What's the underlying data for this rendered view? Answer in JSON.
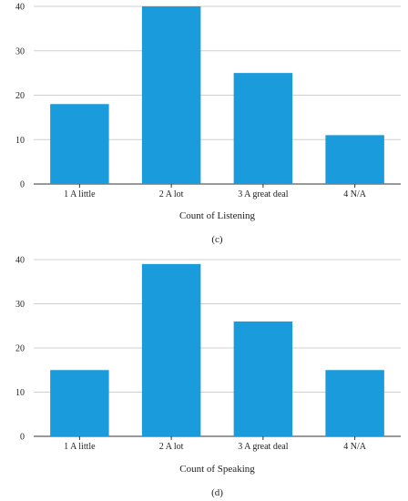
{
  "chart_data": [
    {
      "type": "bar",
      "panel_label": "(c)",
      "xlabel": "Count of Listening",
      "ylabel": "",
      "categories": [
        "1 A little",
        "2 A lot",
        "3 A great deal",
        "4 N/A"
      ],
      "values": [
        18,
        40,
        25,
        11
      ],
      "ylim": [
        0,
        40
      ],
      "yticks": [
        0,
        10,
        20,
        30,
        40
      ],
      "grid": true,
      "bar_color": "#1a9bdb"
    },
    {
      "type": "bar",
      "panel_label": "(d)",
      "xlabel": "Count of Speaking",
      "ylabel": "",
      "categories": [
        "1 A little",
        "2 A lot",
        "3 A great deal",
        "4 N/A"
      ],
      "values": [
        15,
        39,
        26,
        15
      ],
      "ylim": [
        0,
        40
      ],
      "yticks": [
        0,
        10,
        20,
        30,
        40
      ],
      "grid": true,
      "bar_color": "#1a9bdb"
    }
  ]
}
